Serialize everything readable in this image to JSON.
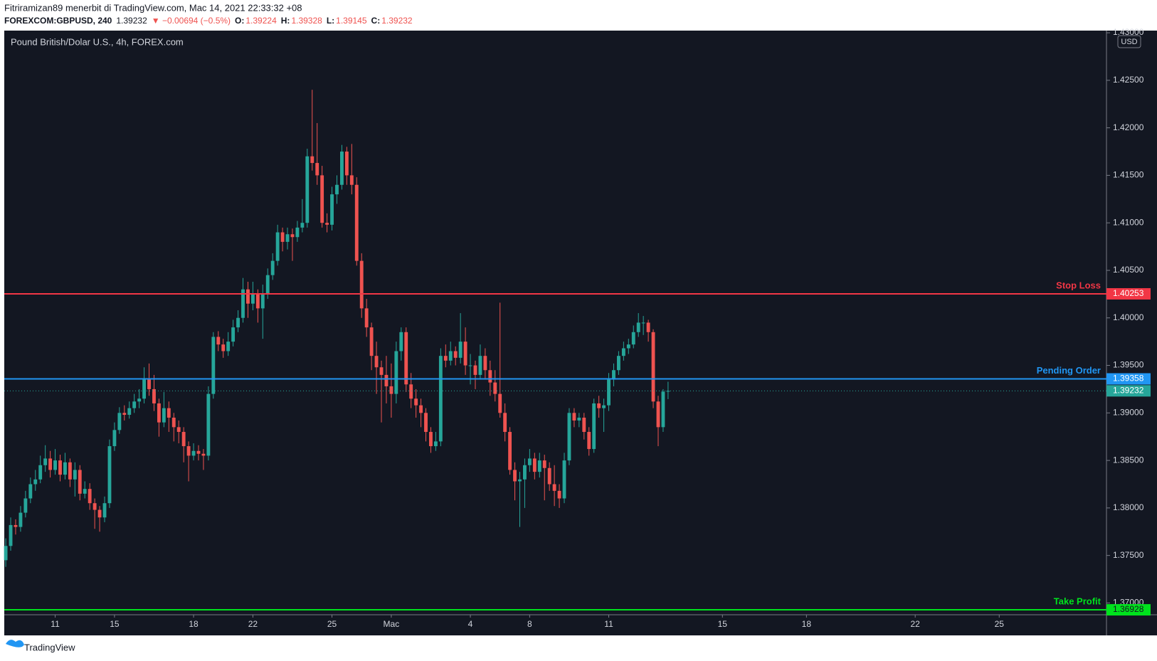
{
  "header": {
    "author": "Fitriramizan89 menerbit di TradingView.com, Mac 14, 2021 22:33:32 +08",
    "symbol": "FOREXCOM:GBPUSD, 240",
    "price": "1.39232",
    "change": "▼ −0.00694 (−0.5%)",
    "o_label": "O:",
    "o": "1.39224",
    "h_label": "H:",
    "h": "1.39328",
    "l_label": "L:",
    "l": "1.39145",
    "c_label": "C:",
    "c": "1.39232"
  },
  "footer": {
    "brand": "TradingView"
  },
  "chart_data": {
    "type": "candlestick",
    "title": "Pound British/Dolar U.S., 4h, FOREX.com",
    "currency": "USD",
    "up_color": "#26a69a",
    "down_color": "#ef5350",
    "xlim": [
      -0.3,
      222.7
    ],
    "ylim": [
      1.36876,
      1.43023
    ],
    "xticks": [
      {
        "value": 10,
        "label": "11"
      },
      {
        "value": 22,
        "label": "15"
      },
      {
        "value": 38,
        "label": "18"
      },
      {
        "value": 50,
        "label": "22"
      },
      {
        "value": 66,
        "label": "25"
      },
      {
        "value": 78,
        "label": "Mac"
      },
      {
        "value": 94,
        "label": "4"
      },
      {
        "value": 106,
        "label": "8"
      },
      {
        "value": 122,
        "label": "11"
      },
      {
        "value": 145,
        "label": "15"
      },
      {
        "value": 162,
        "label": "18"
      },
      {
        "value": 184,
        "label": "22"
      },
      {
        "value": 201,
        "label": "25"
      }
    ],
    "yticks": [
      {
        "value": 1.37,
        "label": "1.37000"
      },
      {
        "value": 1.375,
        "label": "1.37500"
      },
      {
        "value": 1.38,
        "label": "1.38000"
      },
      {
        "value": 1.385,
        "label": "1.38500"
      },
      {
        "value": 1.39,
        "label": "1.39000"
      },
      {
        "value": 1.395,
        "label": "1.39500"
      },
      {
        "value": 1.4,
        "label": "1.40000"
      },
      {
        "value": 1.405,
        "label": "1.40500"
      },
      {
        "value": 1.41,
        "label": "1.41000"
      },
      {
        "value": 1.415,
        "label": "1.41500"
      },
      {
        "value": 1.42,
        "label": "1.42000"
      },
      {
        "value": 1.425,
        "label": "1.42500"
      },
      {
        "value": 1.43,
        "label": "1.43000"
      }
    ],
    "levels": [
      {
        "name": "Stop Loss",
        "value": 1.40253,
        "color": "#f23645"
      },
      {
        "name": "Pending Order",
        "value": 1.39358,
        "color": "#2196f3"
      },
      {
        "name": "Take Profit",
        "value": 1.36928,
        "color": "#00e21d"
      }
    ],
    "last_price": 1.39232,
    "candles": [
      [
        1.3745,
        1.3768,
        1.3738,
        1.376
      ],
      [
        1.376,
        1.379,
        1.3755,
        1.3782
      ],
      [
        1.3782,
        1.3788,
        1.3772,
        1.378
      ],
      [
        1.378,
        1.3802,
        1.3775,
        1.3795
      ],
      [
        1.3795,
        1.3818,
        1.379,
        1.381
      ],
      [
        1.381,
        1.3832,
        1.3805,
        1.3825
      ],
      [
        1.3825,
        1.384,
        1.3818,
        1.383
      ],
      [
        1.383,
        1.3855,
        1.3826,
        1.3845
      ],
      [
        1.3845,
        1.3866,
        1.3838,
        1.3852
      ],
      [
        1.3852,
        1.386,
        1.3832,
        1.384
      ],
      [
        1.384,
        1.3862,
        1.3835,
        1.385
      ],
      [
        1.385,
        1.3856,
        1.3828,
        1.3835
      ],
      [
        1.3835,
        1.3858,
        1.383,
        1.3848
      ],
      [
        1.3848,
        1.3852,
        1.3822,
        1.383
      ],
      [
        1.383,
        1.3848,
        1.3812,
        1.384
      ],
      [
        1.384,
        1.3845,
        1.3808,
        1.3815
      ],
      [
        1.3815,
        1.3828,
        1.381,
        1.382
      ],
      [
        1.382,
        1.3826,
        1.3798,
        1.3805
      ],
      [
        1.3805,
        1.381,
        1.3778,
        1.3798
      ],
      [
        1.3798,
        1.3802,
        1.3775,
        1.379
      ],
      [
        1.379,
        1.3812,
        1.3785,
        1.3805
      ],
      [
        1.3805,
        1.3872,
        1.38,
        1.3865
      ],
      [
        1.3865,
        1.389,
        1.386,
        1.3882
      ],
      [
        1.3882,
        1.3906,
        1.3878,
        1.39
      ],
      [
        1.39,
        1.3908,
        1.3892,
        1.3898
      ],
      [
        1.3898,
        1.3912,
        1.3894,
        1.3905
      ],
      [
        1.3905,
        1.392,
        1.39,
        1.3912
      ],
      [
        1.3912,
        1.3925,
        1.3905,
        1.3915
      ],
      [
        1.3915,
        1.3948,
        1.391,
        1.3935
      ],
      [
        1.3935,
        1.3952,
        1.3918,
        1.3925
      ],
      [
        1.3925,
        1.394,
        1.3902,
        1.391
      ],
      [
        1.391,
        1.3915,
        1.3875,
        1.389
      ],
      [
        1.389,
        1.3922,
        1.3885,
        1.3905
      ],
      [
        1.3905,
        1.3912,
        1.388,
        1.3895
      ],
      [
        1.3895,
        1.39,
        1.387,
        1.3885
      ],
      [
        1.3885,
        1.3892,
        1.3868,
        1.388
      ],
      [
        1.388,
        1.3885,
        1.3848,
        1.3865
      ],
      [
        1.3865,
        1.387,
        1.3828,
        1.3855
      ],
      [
        1.3855,
        1.3868,
        1.385,
        1.386
      ],
      [
        1.386,
        1.3866,
        1.385,
        1.3857
      ],
      [
        1.3857,
        1.3862,
        1.384,
        1.3855
      ],
      [
        1.3855,
        1.3928,
        1.385,
        1.392
      ],
      [
        1.392,
        1.3985,
        1.3915,
        1.398
      ],
      [
        1.398,
        1.3986,
        1.3965,
        1.3972
      ],
      [
        1.3972,
        1.3978,
        1.3958,
        1.3965
      ],
      [
        1.3965,
        1.3985,
        1.396,
        1.3975
      ],
      [
        1.3975,
        1.3998,
        1.397,
        1.399
      ],
      [
        1.399,
        1.4008,
        1.3985,
        1.4
      ],
      [
        1.4,
        1.4042,
        1.3995,
        1.403
      ],
      [
        1.403,
        1.4038,
        1.4,
        1.4015
      ],
      [
        1.4015,
        1.4038,
        1.4008,
        1.4025
      ],
      [
        1.4025,
        1.403,
        1.3995,
        1.401
      ],
      [
        1.401,
        1.4035,
        1.3978,
        1.4025
      ],
      [
        1.4025,
        1.4052,
        1.402,
        1.4045
      ],
      [
        1.4045,
        1.4068,
        1.404,
        1.406
      ],
      [
        1.406,
        1.4098,
        1.4055,
        1.409
      ],
      [
        1.409,
        1.4095,
        1.407,
        1.408
      ],
      [
        1.408,
        1.4095,
        1.4072,
        1.4088
      ],
      [
        1.4088,
        1.4094,
        1.406,
        1.4085
      ],
      [
        1.4085,
        1.4102,
        1.408,
        1.4095
      ],
      [
        1.4095,
        1.4125,
        1.409,
        1.41
      ],
      [
        1.41,
        1.4178,
        1.4095,
        1.417
      ],
      [
        1.417,
        1.424,
        1.4155,
        1.4163
      ],
      [
        1.4163,
        1.4205,
        1.414,
        1.415
      ],
      [
        1.415,
        1.416,
        1.4095,
        1.41
      ],
      [
        1.41,
        1.411,
        1.409,
        1.4098
      ],
      [
        1.4098,
        1.4138,
        1.4092,
        1.413
      ],
      [
        1.413,
        1.415,
        1.412,
        1.414
      ],
      [
        1.414,
        1.4182,
        1.4135,
        1.4175
      ],
      [
        1.4175,
        1.418,
        1.414,
        1.415
      ],
      [
        1.415,
        1.4183,
        1.413,
        1.414
      ],
      [
        1.414,
        1.4148,
        1.4055,
        1.406
      ],
      [
        1.406,
        1.4068,
        1.4,
        1.401
      ],
      [
        1.401,
        1.402,
        1.398,
        1.399
      ],
      [
        1.399,
        1.3995,
        1.3945,
        1.396
      ],
      [
        1.396,
        1.3975,
        1.392,
        1.3948
      ],
      [
        1.3948,
        1.3955,
        1.389,
        1.394
      ],
      [
        1.394,
        1.396,
        1.391,
        1.3928
      ],
      [
        1.3928,
        1.3952,
        1.3895,
        1.392
      ],
      [
        1.392,
        1.3975,
        1.391,
        1.3965
      ],
      [
        1.3965,
        1.399,
        1.3955,
        1.3985
      ],
      [
        1.3985,
        1.399,
        1.3922,
        1.393
      ],
      [
        1.393,
        1.3942,
        1.3905,
        1.3915
      ],
      [
        1.3915,
        1.3925,
        1.3895,
        1.3908
      ],
      [
        1.3908,
        1.3915,
        1.3885,
        1.39
      ],
      [
        1.39,
        1.3905,
        1.387,
        1.388
      ],
      [
        1.388,
        1.3885,
        1.3858,
        1.3865
      ],
      [
        1.3865,
        1.388,
        1.386,
        1.387
      ],
      [
        1.387,
        1.3968,
        1.3865,
        1.396
      ],
      [
        1.396,
        1.3972,
        1.3948,
        1.3955
      ],
      [
        1.3955,
        1.3975,
        1.395,
        1.3965
      ],
      [
        1.3965,
        1.397,
        1.395,
        1.3958
      ],
      [
        1.3958,
        1.4005,
        1.3952,
        1.3975
      ],
      [
        1.3975,
        1.399,
        1.394,
        1.395
      ],
      [
        1.395,
        1.3962,
        1.393,
        1.395
      ],
      [
        1.395,
        1.3955,
        1.3925,
        1.394
      ],
      [
        1.394,
        1.3972,
        1.3935,
        1.396
      ],
      [
        1.396,
        1.3968,
        1.3935,
        1.3945
      ],
      [
        1.3945,
        1.3955,
        1.3918,
        1.3932
      ],
      [
        1.3932,
        1.3945,
        1.3912,
        1.392
      ],
      [
        1.392,
        1.4016,
        1.3895,
        1.39
      ],
      [
        1.39,
        1.391,
        1.387,
        1.388
      ],
      [
        1.388,
        1.3885,
        1.3835,
        1.384
      ],
      [
        1.384,
        1.3848,
        1.3808,
        1.3828
      ],
      [
        1.3828,
        1.3838,
        1.378,
        1.383
      ],
      [
        1.383,
        1.3852,
        1.38,
        1.3845
      ],
      [
        1.3845,
        1.3862,
        1.3838,
        1.3852
      ],
      [
        1.3852,
        1.3858,
        1.383,
        1.3838
      ],
      [
        1.3838,
        1.3858,
        1.3832,
        1.385
      ],
      [
        1.385,
        1.3856,
        1.3808,
        1.3842
      ],
      [
        1.3842,
        1.3848,
        1.3818,
        1.3825
      ],
      [
        1.3825,
        1.3845,
        1.3802,
        1.3818
      ],
      [
        1.3818,
        1.3825,
        1.38,
        1.381
      ],
      [
        1.381,
        1.3858,
        1.3805,
        1.385
      ],
      [
        1.385,
        1.3905,
        1.3845,
        1.39
      ],
      [
        1.39,
        1.3905,
        1.3885,
        1.3892
      ],
      [
        1.3892,
        1.39,
        1.3885,
        1.3895
      ],
      [
        1.3895,
        1.39,
        1.3872,
        1.388
      ],
      [
        1.388,
        1.3885,
        1.3855,
        1.3862
      ],
      [
        1.3862,
        1.3915,
        1.3858,
        1.391
      ],
      [
        1.391,
        1.3918,
        1.3895,
        1.3905
      ],
      [
        1.3905,
        1.3915,
        1.388,
        1.3908
      ],
      [
        1.3908,
        1.3942,
        1.3902,
        1.3935
      ],
      [
        1.3935,
        1.3952,
        1.3928,
        1.3945
      ],
      [
        1.3945,
        1.3965,
        1.394,
        1.396
      ],
      [
        1.396,
        1.3975,
        1.3955,
        1.3968
      ],
      [
        1.3968,
        1.3978,
        1.3962,
        1.3972
      ],
      [
        1.3972,
        1.3992,
        1.3968,
        1.3985
      ],
      [
        1.3985,
        1.4005,
        1.398,
        1.3995
      ],
      [
        1.3995,
        1.4002,
        1.3982,
        1.3995
      ],
      [
        1.3995,
        1.3998,
        1.3975,
        1.3985
      ],
      [
        1.3985,
        1.3988,
        1.3905,
        1.3912
      ],
      [
        1.3912,
        1.3918,
        1.3865,
        1.3885
      ],
      [
        1.3885,
        1.3925,
        1.388,
        1.39224
      ],
      [
        1.39224,
        1.39328,
        1.39145,
        1.39232
      ]
    ]
  }
}
